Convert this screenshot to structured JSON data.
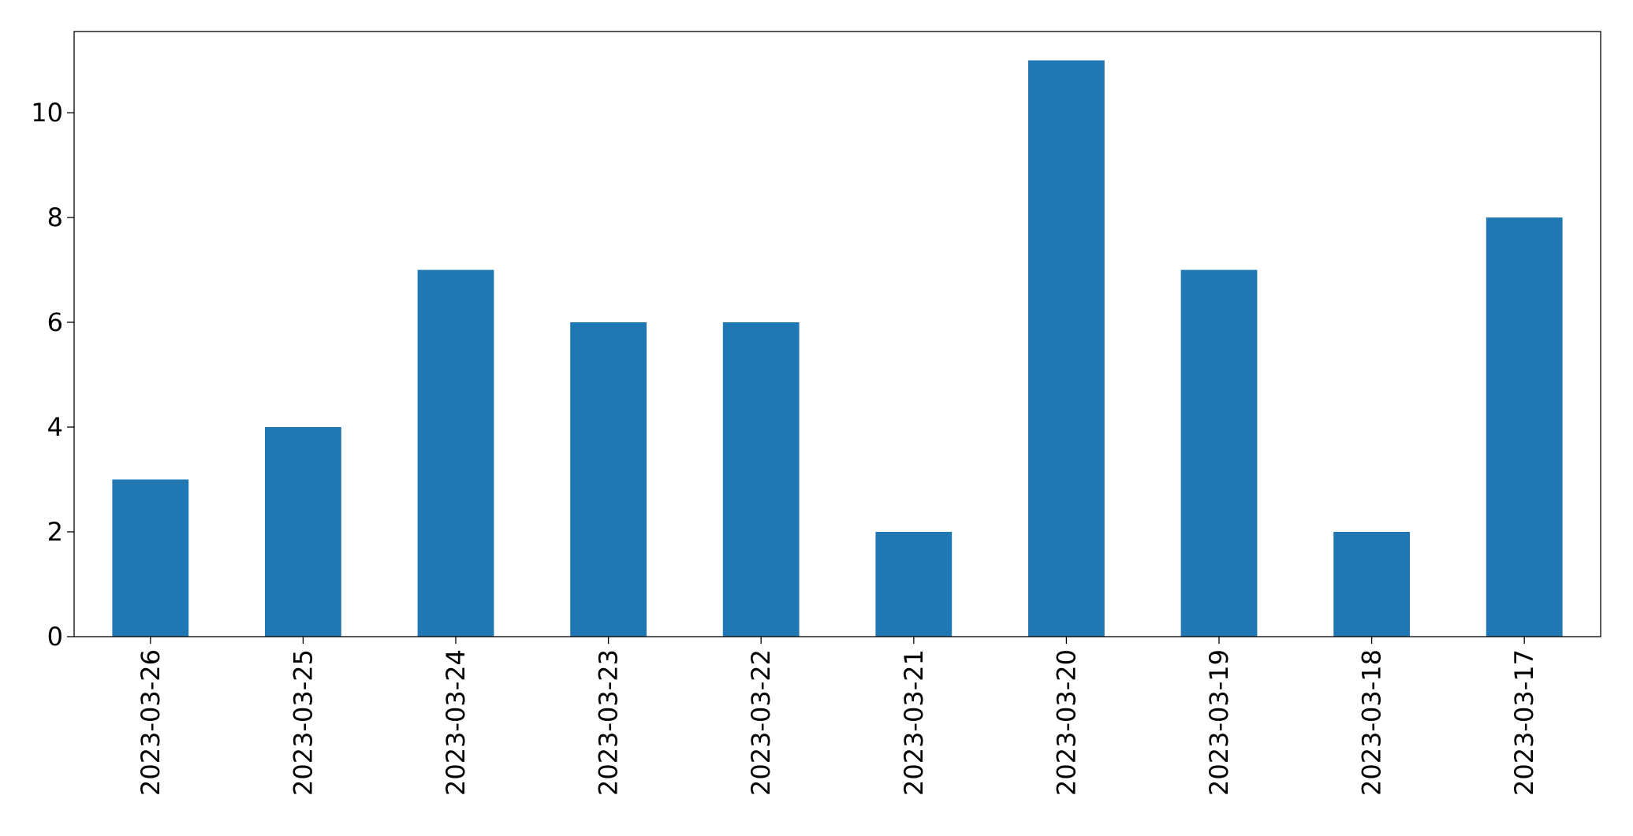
{
  "chart_data": {
    "type": "bar",
    "categories": [
      "2023-03-26",
      "2023-03-25",
      "2023-03-24",
      "2023-03-23",
      "2023-03-22",
      "2023-03-21",
      "2023-03-20",
      "2023-03-19",
      "2023-03-18",
      "2023-03-17"
    ],
    "values": [
      3,
      4,
      7,
      6,
      6,
      2,
      11,
      7,
      2,
      8
    ],
    "color": "#1f77b4",
    "ylim": [
      0,
      11.55
    ],
    "yticks": [
      0,
      2,
      4,
      6,
      8,
      10
    ],
    "grid": false
  }
}
